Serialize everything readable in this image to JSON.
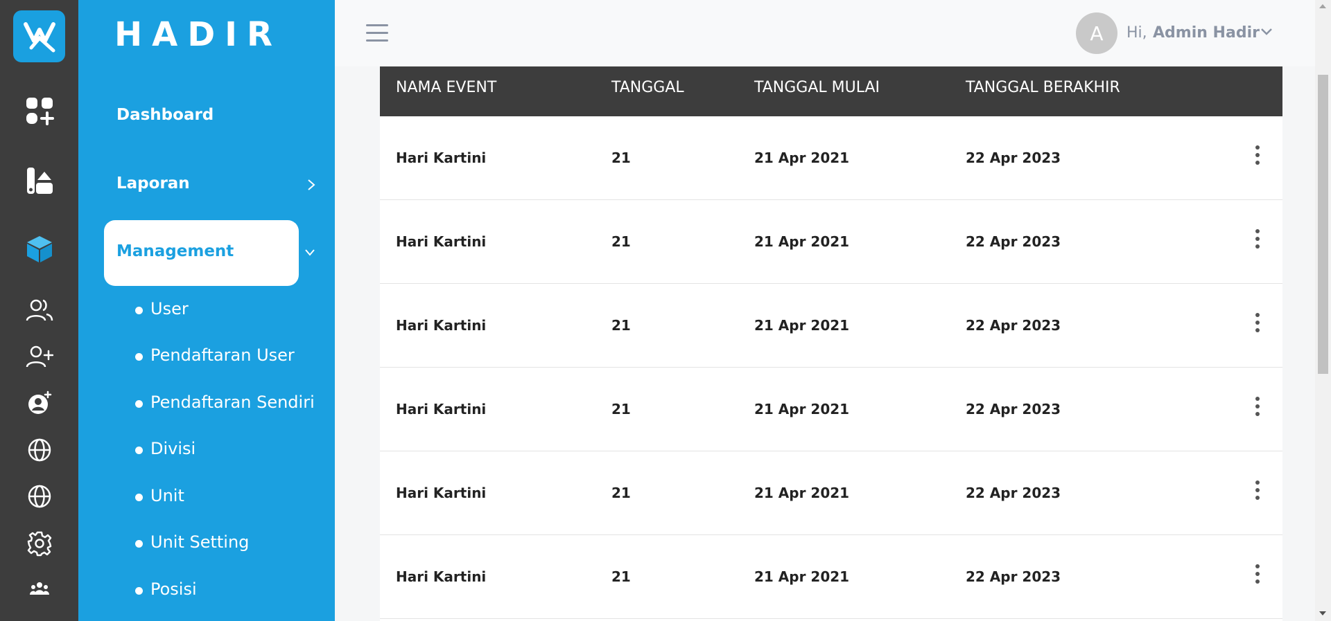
{
  "app": {
    "brand": "HADIR"
  },
  "sidebar": {
    "items": [
      {
        "label": "Dashboard"
      },
      {
        "label": "Laporan"
      },
      {
        "label": "Management"
      }
    ],
    "submenu": [
      "User",
      "Pendaftaran User",
      "Pendaftaran Sendiri",
      "Divisi",
      "Unit",
      "Unit Setting",
      "Posisi"
    ]
  },
  "rail_icons": [
    "grid-plus-icon",
    "reports-icon",
    "cube-icon",
    "users-icon",
    "user-plus-icon",
    "user-badge-icon",
    "globe-icon",
    "globe-icon",
    "gear-icon",
    "team-icon"
  ],
  "header": {
    "avatar_initial": "A",
    "greeting": "Hi,",
    "user_name": "Admin Hadir"
  },
  "table": {
    "columns": [
      "NAMA EVENT",
      "TANGGAL",
      "TANGGAL MULAI",
      "TANGGAL BERAKHIR"
    ],
    "rows": [
      [
        "Hari Kartini",
        "21",
        "21 Apr 2021",
        "22 Apr 2023"
      ],
      [
        "Hari Kartini",
        "21",
        "21 Apr 2021",
        "22 Apr 2023"
      ],
      [
        "Hari Kartini",
        "21",
        "21 Apr 2021",
        "22 Apr 2023"
      ],
      [
        "Hari Kartini",
        "21",
        "21 Apr 2021",
        "22 Apr 2023"
      ],
      [
        "Hari Kartini",
        "21",
        "21 Apr 2021",
        "22 Apr 2023"
      ],
      [
        "Hari Kartini",
        "21",
        "21 Apr 2021",
        "22 Apr 2023"
      ]
    ]
  },
  "colors": {
    "accent": "#1ba0e0",
    "rail": "#3d3d3d",
    "table_header": "#3d3d3d"
  }
}
